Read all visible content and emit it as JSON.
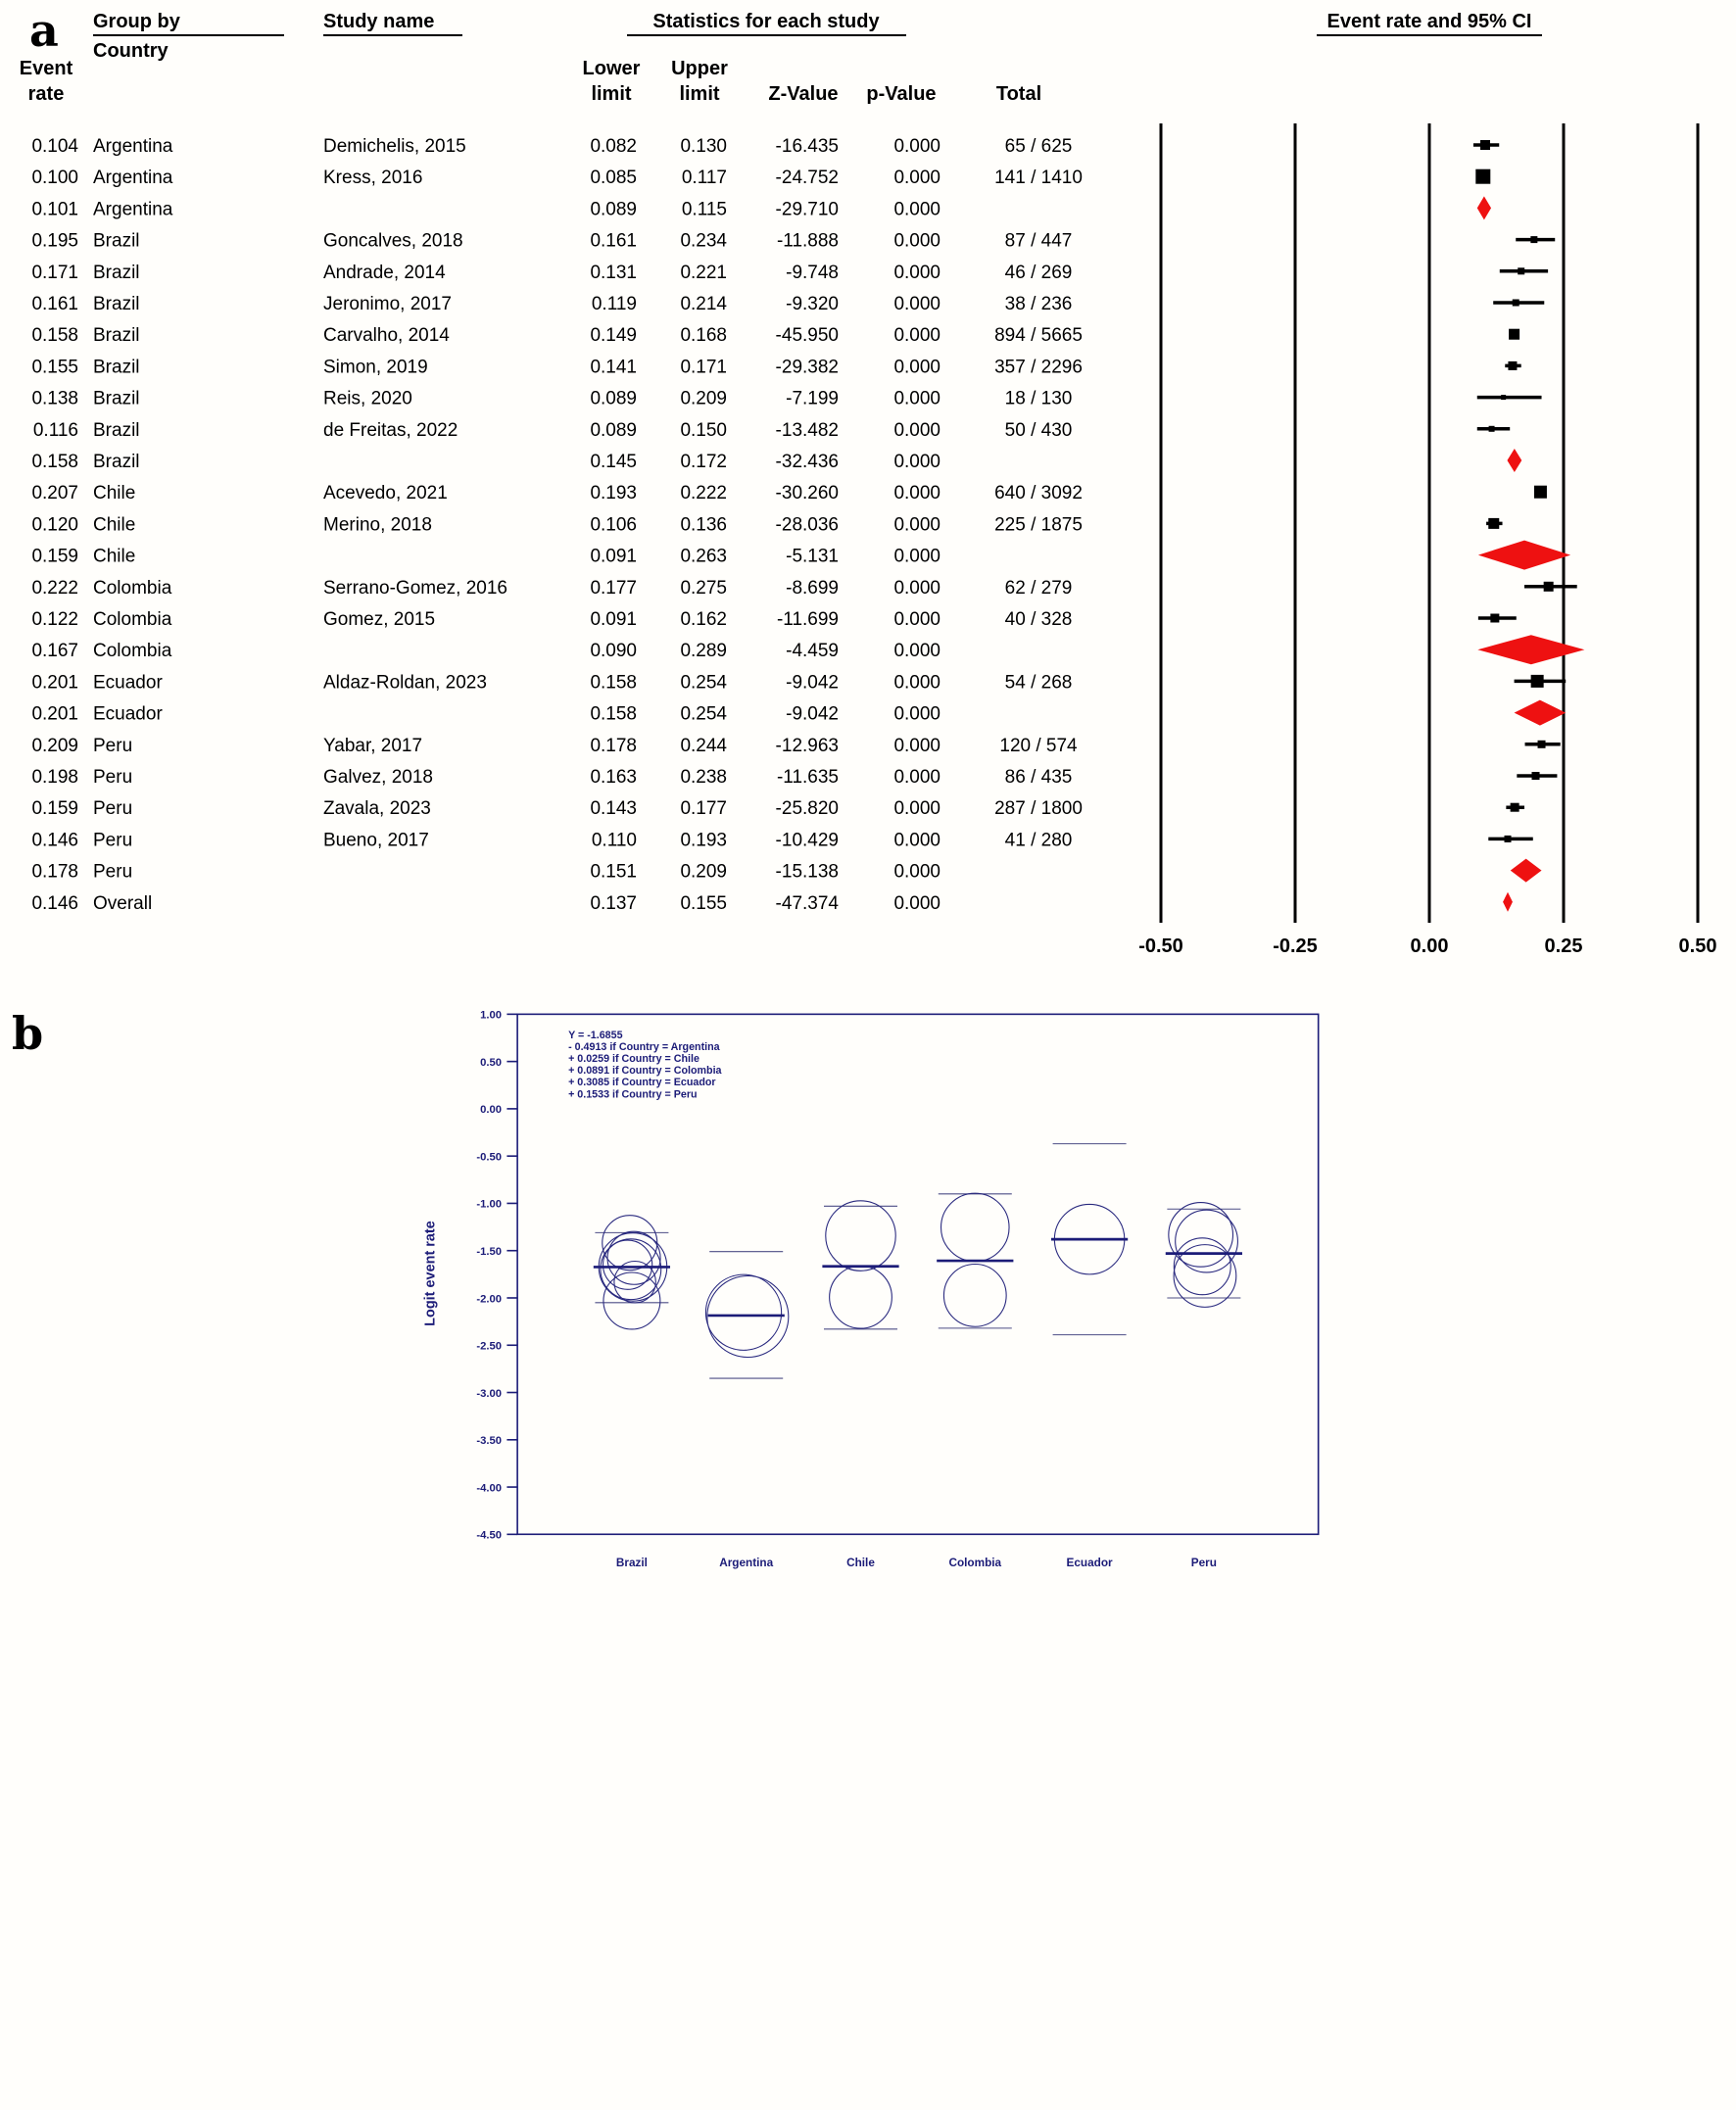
{
  "panel_labels": {
    "a": "a",
    "b": "b"
  },
  "chart_data": [
    {
      "type": "forest",
      "panel": "a",
      "headers": {
        "group_by": "Group by",
        "group_by_sub": "Country",
        "event_rate_1": "Event",
        "event_rate_2": "rate",
        "study_name": "Study name",
        "statistics": "Statistics for each study",
        "lower_1": "Lower",
        "lower_2": "limit",
        "upper_1": "Upper",
        "upper_2": "limit",
        "z_value": "Z-Value",
        "p_value": "p-Value",
        "total": "Total",
        "forest_title": "Event rate and 95% CI"
      },
      "xticks": {
        "labels": [
          "-0.50",
          "-0.25",
          "0.00",
          "0.25",
          "0.50"
        ],
        "values": [
          -0.5,
          -0.25,
          0.0,
          0.25,
          0.5
        ]
      },
      "colors": {
        "marker": "#000000",
        "summary_diamond": "#ee1111",
        "text": "#000000",
        "gridline": "#000000"
      },
      "rows": [
        {
          "er": "0.104",
          "group": "Argentina",
          "study": "Demichelis, 2015",
          "ll": "0.082",
          "ul": "0.130",
          "z": "-16.435",
          "p": "0.000",
          "total": "65 / 625",
          "type": "study",
          "ms": 10
        },
        {
          "er": "0.100",
          "group": "Argentina",
          "study": "Kress, 2016",
          "ll": "0.085",
          "ul": "0.117",
          "z": "-24.752",
          "p": "0.000",
          "total": "141 / 1410",
          "type": "study",
          "ms": 15
        },
        {
          "er": "0.101",
          "group": "Argentina",
          "study": "",
          "ll": "0.089",
          "ul": "0.115",
          "z": "-29.710",
          "p": "0.000",
          "total": "",
          "type": "summary",
          "ms": 12
        },
        {
          "er": "0.195",
          "group": "Brazil",
          "study": "Goncalves, 2018",
          "ll": "0.161",
          "ul": "0.234",
          "z": "-11.888",
          "p": "0.000",
          "total": "87 / 447",
          "type": "study",
          "ms": 7
        },
        {
          "er": "0.171",
          "group": "Brazil",
          "study": "Andrade, 2014",
          "ll": "0.131",
          "ul": "0.221",
          "z": "-9.748",
          "p": "0.000",
          "total": "46 / 269",
          "type": "study",
          "ms": 7
        },
        {
          "er": "0.161",
          "group": "Brazil",
          "study": "Jeronimo, 2017",
          "ll": "0.119",
          "ul": "0.214",
          "z": "-9.320",
          "p": "0.000",
          "total": "38 / 236",
          "type": "study",
          "ms": 7
        },
        {
          "er": "0.158",
          "group": "Brazil",
          "study": "Carvalho, 2014",
          "ll": "0.149",
          "ul": "0.168",
          "z": "-45.950",
          "p": "0.000",
          "total": "894 / 5665",
          "type": "study",
          "ms": 11
        },
        {
          "er": "0.155",
          "group": "Brazil",
          "study": "Simon, 2019",
          "ll": "0.141",
          "ul": "0.171",
          "z": "-29.382",
          "p": "0.000",
          "total": "357 / 2296",
          "type": "study",
          "ms": 9
        },
        {
          "er": "0.138",
          "group": "Brazil",
          "study": "Reis, 2020",
          "ll": "0.089",
          "ul": "0.209",
          "z": "-7.199",
          "p": "0.000",
          "total": "18 / 130",
          "type": "study",
          "ms": 5
        },
        {
          "er": "0.116",
          "group": "Brazil",
          "study": "de Freitas, 2022",
          "ll": "0.089",
          "ul": "0.150",
          "z": "-13.482",
          "p": "0.000",
          "total": "50 / 430",
          "type": "study",
          "ms": 6
        },
        {
          "er": "0.158",
          "group": "Brazil",
          "study": "",
          "ll": "0.145",
          "ul": "0.172",
          "z": "-32.436",
          "p": "0.000",
          "total": "",
          "type": "summary",
          "ms": 12
        },
        {
          "er": "0.207",
          "group": "Chile",
          "study": "Acevedo, 2021",
          "ll": "0.193",
          "ul": "0.222",
          "z": "-30.260",
          "p": "0.000",
          "total": "640 / 3092",
          "type": "study",
          "ms": 13
        },
        {
          "er": "0.120",
          "group": "Chile",
          "study": "Merino, 2018",
          "ll": "0.106",
          "ul": "0.136",
          "z": "-28.036",
          "p": "0.000",
          "total": "225 / 1875",
          "type": "study",
          "ms": 11
        },
        {
          "er": "0.159",
          "group": "Chile",
          "study": "",
          "ll": "0.091",
          "ul": "0.263",
          "z": "-5.131",
          "p": "0.000",
          "total": "",
          "type": "summary",
          "ms": 15
        },
        {
          "er": "0.222",
          "group": "Colombia",
          "study": "Serrano-Gomez, 2016",
          "ll": "0.177",
          "ul": "0.275",
          "z": "-8.699",
          "p": "0.000",
          "total": "62 / 279",
          "type": "study",
          "ms": 10
        },
        {
          "er": "0.122",
          "group": "Colombia",
          "study": "Gomez, 2015",
          "ll": "0.091",
          "ul": "0.162",
          "z": "-11.699",
          "p": "0.000",
          "total": "40 / 328",
          "type": "study",
          "ms": 9
        },
        {
          "er": "0.167",
          "group": "Colombia",
          "study": "",
          "ll": "0.090",
          "ul": "0.289",
          "z": "-4.459",
          "p": "0.000",
          "total": "",
          "type": "summary",
          "ms": 15
        },
        {
          "er": "0.201",
          "group": "Ecuador",
          "study": "Aldaz-Roldan, 2023",
          "ll": "0.158",
          "ul": "0.254",
          "z": "-9.042",
          "p": "0.000",
          "total": "54 / 268",
          "type": "study",
          "ms": 13
        },
        {
          "er": "0.201",
          "group": "Ecuador",
          "study": "",
          "ll": "0.158",
          "ul": "0.254",
          "z": "-9.042",
          "p": "0.000",
          "total": "",
          "type": "summary",
          "ms": 13
        },
        {
          "er": "0.209",
          "group": "Peru",
          "study": "Yabar, 2017",
          "ll": "0.178",
          "ul": "0.244",
          "z": "-12.963",
          "p": "0.000",
          "total": "120 / 574",
          "type": "study",
          "ms": 8
        },
        {
          "er": "0.198",
          "group": "Peru",
          "study": "Galvez, 2018",
          "ll": "0.163",
          "ul": "0.238",
          "z": "-11.635",
          "p": "0.000",
          "total": "86 / 435",
          "type": "study",
          "ms": 8
        },
        {
          "er": "0.159",
          "group": "Peru",
          "study": "Zavala, 2023",
          "ll": "0.143",
          "ul": "0.177",
          "z": "-25.820",
          "p": "0.000",
          "total": "287 / 1800",
          "type": "study",
          "ms": 9
        },
        {
          "er": "0.146",
          "group": "Peru",
          "study": "Bueno, 2017",
          "ll": "0.110",
          "ul": "0.193",
          "z": "-10.429",
          "p": "0.000",
          "total": "41 / 280",
          "type": "study",
          "ms": 7
        },
        {
          "er": "0.178",
          "group": "Peru",
          "study": "",
          "ll": "0.151",
          "ul": "0.209",
          "z": "-15.138",
          "p": "0.000",
          "total": "",
          "type": "summary",
          "ms": 12
        },
        {
          "er": "0.146",
          "group": "Overall",
          "study": "",
          "ll": "0.137",
          "ul": "0.155",
          "z": "-47.374",
          "p": "0.000",
          "total": "",
          "type": "overall",
          "ms": 10
        }
      ]
    },
    {
      "type": "scatter",
      "panel": "b",
      "ylabel": "Logit event rate",
      "ylim": [
        1.0,
        -4.5
      ],
      "yticks": {
        "labels": [
          "1.00",
          "0.50",
          "0.00",
          "-0.50",
          "-1.00",
          "-1.50",
          "-2.00",
          "-2.50",
          "-3.00",
          "-3.50",
          "-4.00",
          "-4.50"
        ],
        "values": [
          1.0,
          0.5,
          0.0,
          -0.5,
          -1.0,
          -1.5,
          -2.0,
          -2.5,
          -3.0,
          -3.5,
          -4.0,
          -4.5
        ]
      },
      "categories": [
        "Brazil",
        "Argentina",
        "Chile",
        "Colombia",
        "Ecuador",
        "Peru"
      ],
      "annotation": [
        "Y = -1.6855",
        "- 0.4913 if Country = Argentina",
        "+ 0.0259 if Country = Chile",
        "+ 0.0891 if Country = Colombia",
        "+ 0.3085 if Country = Ecuador",
        "+ 0.1533 if Country = Peru"
      ],
      "colors": {
        "axis": "#1c1c78",
        "text": "#1c1c78",
        "mean_line": "#1c1c78",
        "ci_line": "#4d4d86",
        "circle": "#28287e"
      },
      "groups": [
        {
          "country": "Brazil",
          "mean": -1.673,
          "ci_top": -1.31,
          "ci_bot": -2.05,
          "circles": [
            {
              "y": -1.417,
              "r": 0.29,
              "dx": -4
            },
            {
              "y": -1.578,
              "r": 0.28,
              "dx": 4
            },
            {
              "y": -1.65,
              "r": 0.26,
              "dx": -8
            },
            {
              "y": -1.673,
              "r": 0.36,
              "dx": 2
            },
            {
              "y": -1.697,
              "r": 0.32,
              "dx": -2
            },
            {
              "y": -1.832,
              "r": 0.22,
              "dx": 6
            },
            {
              "y": -2.031,
              "r": 0.3,
              "dx": 0
            }
          ]
        },
        {
          "country": "Argentina",
          "mean": -2.186,
          "ci_top": -1.51,
          "ci_bot": -2.85,
          "circles": [
            {
              "y": -2.153,
              "r": 0.4,
              "dx": -5
            },
            {
              "y": -2.197,
              "r": 0.43,
              "dx": 3
            }
          ]
        },
        {
          "country": "Chile",
          "mean": -1.666,
          "ci_top": -1.03,
          "ci_bot": -2.33,
          "circles": [
            {
              "y": -1.343,
              "r": 0.37,
              "dx": 0
            },
            {
              "y": -1.992,
              "r": 0.33,
              "dx": 0
            }
          ]
        },
        {
          "country": "Colombia",
          "mean": -1.607,
          "ci_top": -0.9,
          "ci_bot": -2.32,
          "circles": [
            {
              "y": -1.254,
              "r": 0.36,
              "dx": 0
            },
            {
              "y": -1.973,
              "r": 0.33,
              "dx": 0
            }
          ]
        },
        {
          "country": "Ecuador",
          "mean": -1.38,
          "ci_top": -0.37,
          "ci_bot": -2.39,
          "circles": [
            {
              "y": -1.38,
              "r": 0.37,
              "dx": 0
            }
          ]
        },
        {
          "country": "Peru",
          "mean": -1.53,
          "ci_top": -1.06,
          "ci_bot": -2.0,
          "circles": [
            {
              "y": -1.331,
              "r": 0.34,
              "dx": -6
            },
            {
              "y": -1.4,
              "r": 0.33,
              "dx": 5
            },
            {
              "y": -1.666,
              "r": 0.3,
              "dx": -3
            },
            {
              "y": -1.767,
              "r": 0.33,
              "dx": 2
            }
          ]
        }
      ]
    }
  ]
}
